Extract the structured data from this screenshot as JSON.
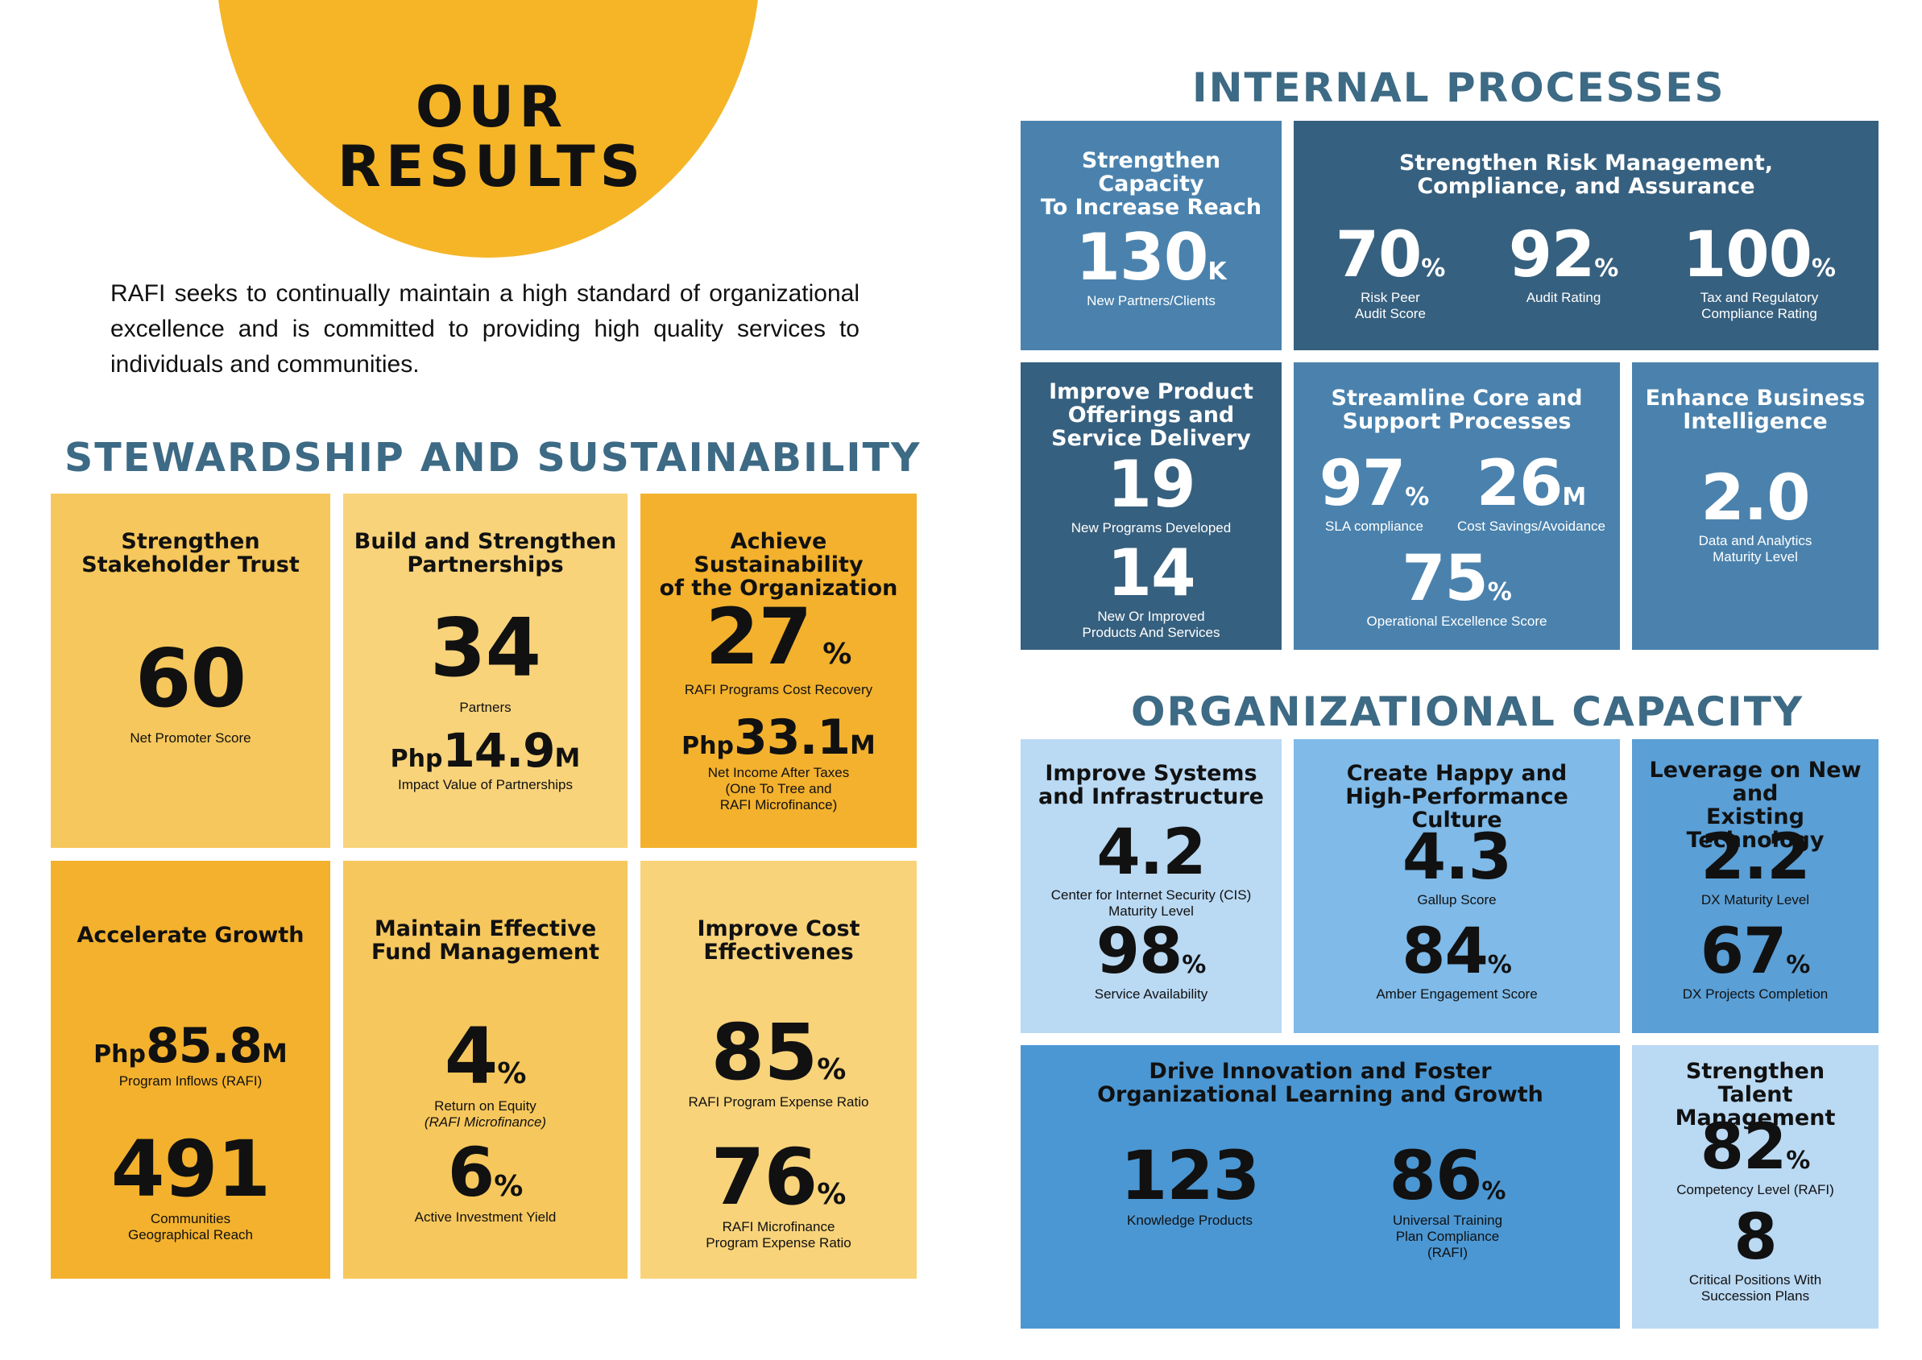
{
  "header": {
    "title_line1": "OUR",
    "title_line2": "RESULTS",
    "intro": "RAFI seeks to continually maintain a high standard of organizational excellence and is committed to providing high quality services to individuals and communities."
  },
  "stewardship": {
    "heading": "STEWARDSHIP AND SUSTAINABILITY",
    "tiles": [
      {
        "title": "Strengthen\nStakeholder Trust",
        "m1_value": "60",
        "m1_caption": "Net Promoter Score"
      },
      {
        "title": "Build and Strengthen\nPartnerships",
        "m1_value": "34",
        "m1_caption": "Partners",
        "m2_prefix": "Php",
        "m2_value": "14.9",
        "m2_unit": "M",
        "m2_caption": "Impact Value of Partnerships"
      },
      {
        "title": "Achieve Sustainability\nof the Organization",
        "m1_value": "27",
        "m1_unit": "%",
        "m1_caption": "RAFI Programs Cost Recovery",
        "m2_prefix": "Php",
        "m2_value": "33.1",
        "m2_unit": "M",
        "m2_caption": "Net Income After Taxes\n(One To Tree and\nRAFI Microfinance)"
      },
      {
        "title": "Accelerate Growth",
        "m1_prefix": "Php",
        "m1_value": "85.8",
        "m1_unit": "M",
        "m1_caption": "Program Inflows (RAFI)",
        "m2_value": "491",
        "m2_caption": "Communities\nGeographical Reach"
      },
      {
        "title": "Maintain Effective\nFund Management",
        "m1_value": "4",
        "m1_unit": "%",
        "m1_caption": "Return on Equity",
        "m1_caption2": "(RAFI Microfinance)",
        "m2_value": "6",
        "m2_unit": "%",
        "m2_caption": "Active Investment Yield"
      },
      {
        "title": "Improve Cost\nEffectivenes",
        "m1_value": "85",
        "m1_unit": "%",
        "m1_caption": "RAFI Program Expense Ratio",
        "m2_value": "76",
        "m2_unit": "%",
        "m2_caption": "RAFI Microfinance\nProgram Expense Ratio"
      }
    ]
  },
  "internal": {
    "heading": "INTERNAL PROCESSES",
    "tiles": [
      {
        "title": "Strengthen Capacity\nTo Increase Reach",
        "m1_value": "130",
        "m1_unit": "K",
        "m1_caption": "New Partners/Clients"
      },
      {
        "title": "Strengthen Risk Management,\nCompliance, and Assurance",
        "m1_value": "70",
        "m1_unit": "%",
        "m1_caption": "Risk Peer\nAudit Score",
        "m2_value": "92",
        "m2_unit": "%",
        "m2_caption": "Audit Rating",
        "m3_value": "100",
        "m3_unit": "%",
        "m3_caption": "Tax and Regulatory\nCompliance Rating"
      },
      {
        "title": "Improve Product\nOfferings and\nService Delivery",
        "m1_value": "19",
        "m1_caption": "New Programs Developed",
        "m2_value": "14",
        "m2_caption": "New Or Improved\nProducts And Services"
      },
      {
        "title": "Streamline Core and\nSupport Processes",
        "m1_value": "97",
        "m1_unit": "%",
        "m1_caption": "SLA compliance",
        "m2_value": "26",
        "m2_unit": "M",
        "m2_caption": "Cost Savings/Avoidance",
        "m3_value": "75",
        "m3_unit": "%",
        "m3_caption": "Operational Excellence Score"
      },
      {
        "title": "Enhance Business\nIntelligence",
        "m1_value": "2.0",
        "m1_caption": "Data and Analytics\nMaturity Level"
      }
    ]
  },
  "org": {
    "heading": "ORGANIZATIONAL CAPACITY",
    "tiles": [
      {
        "title": "Improve Systems\nand Infrastructure",
        "m1_value": "4.2",
        "m1_caption": "Center for Internet Security (CIS)\nMaturity Level",
        "m2_value": "98",
        "m2_unit": "%",
        "m2_caption": "Service Availability"
      },
      {
        "title": "Create Happy and\nHigh-Performance Culture",
        "m1_value": "4.3",
        "m1_caption": "Gallup Score",
        "m2_value": "84",
        "m2_unit": "%",
        "m2_caption": "Amber Engagement Score"
      },
      {
        "title": "Leverage on New and\nExisting Technology",
        "m1_value": "2.2",
        "m1_caption": "DX Maturity Level",
        "m2_value": "67",
        "m2_unit": "%",
        "m2_caption": "DX Projects Completion"
      },
      {
        "title": "Drive Innovation and Foster\nOrganizational Learning and Growth",
        "m1_value": "123",
        "m1_caption": "Knowledge Products",
        "m2_value": "86",
        "m2_unit": "%",
        "m2_caption": "Universal Training\nPlan Compliance\n(RAFI)"
      },
      {
        "title": "Strengthen\nTalent Management",
        "m1_value": "82",
        "m1_unit": "%",
        "m1_caption": "Competency Level (RAFI)",
        "m2_value": "8",
        "m2_caption": "Critical Positions With\nSuccession Plans"
      }
    ]
  }
}
